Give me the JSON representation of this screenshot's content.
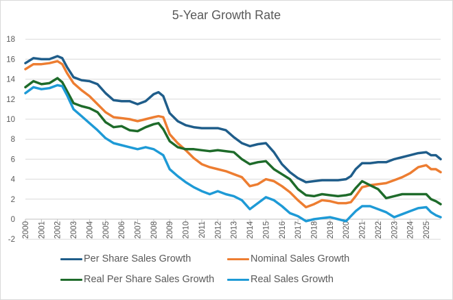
{
  "chart_data": {
    "type": "line",
    "title": "5-Year Growth Rate",
    "xlabel": "",
    "ylabel": "",
    "ylim": [
      -2,
      18
    ],
    "yticks": [
      "18",
      "16",
      "14",
      "12",
      "10",
      "8",
      "6",
      "4",
      "2",
      "0",
      "-2"
    ],
    "ytick_values": [
      18,
      16,
      14,
      12,
      10,
      8,
      6,
      4,
      2,
      0,
      -2
    ],
    "xlim": [
      2000,
      2025.9
    ],
    "xticks": [
      "2000",
      "2001",
      "2002",
      "2003",
      "2004",
      "2005",
      "2006",
      "2007",
      "2008",
      "2009",
      "2010",
      "2011",
      "2012",
      "2013",
      "2014",
      "2015",
      "2016",
      "2017",
      "2018",
      "2019",
      "2020",
      "2021",
      "2022",
      "2023",
      "2024",
      "2025"
    ],
    "grid": "horizontal",
    "legend_position": "bottom",
    "x": [
      2000.0,
      2000.5,
      2001.0,
      2001.5,
      2002.0,
      2002.3,
      2002.6,
      2003.0,
      2003.5,
      2004.0,
      2004.5,
      2005.0,
      2005.5,
      2006.0,
      2006.5,
      2007.0,
      2007.5,
      2008.0,
      2008.3,
      2008.6,
      2009.0,
      2009.5,
      2010.0,
      2010.5,
      2011.0,
      2011.5,
      2012.0,
      2012.5,
      2013.0,
      2013.5,
      2014.0,
      2014.5,
      2015.0,
      2015.5,
      2016.0,
      2016.5,
      2017.0,
      2017.5,
      2018.0,
      2018.5,
      2019.0,
      2019.5,
      2020.0,
      2020.3,
      2020.6,
      2021.0,
      2021.5,
      2022.0,
      2022.5,
      2023.0,
      2023.5,
      2024.0,
      2024.5,
      2025.0,
      2025.3,
      2025.6,
      2025.9
    ],
    "series": [
      {
        "name": "Per Share Sales Growth",
        "color": "#1f5d8a",
        "values": [
          15.6,
          16.1,
          16.0,
          16.0,
          16.3,
          16.1,
          15.2,
          14.2,
          13.9,
          13.8,
          13.5,
          12.6,
          11.9,
          11.8,
          11.8,
          11.5,
          11.8,
          12.5,
          12.7,
          12.3,
          10.6,
          9.8,
          9.4,
          9.2,
          9.1,
          9.1,
          9.1,
          8.9,
          8.2,
          7.6,
          7.3,
          7.5,
          7.6,
          6.7,
          5.5,
          4.7,
          4.1,
          3.7,
          3.8,
          3.9,
          3.9,
          3.9,
          4.0,
          4.3,
          5.0,
          5.6,
          5.6,
          5.7,
          5.7,
          6.0,
          6.2,
          6.4,
          6.6,
          6.7,
          6.4,
          6.4,
          6.0
        ]
      },
      {
        "name": "Nominal Sales Growth",
        "color": "#ed7d31",
        "values": [
          15.0,
          15.5,
          15.5,
          15.6,
          15.8,
          15.5,
          14.6,
          13.6,
          12.9,
          12.3,
          11.5,
          10.7,
          10.2,
          10.1,
          10.0,
          9.8,
          10.0,
          10.2,
          10.3,
          10.2,
          8.5,
          7.6,
          6.9,
          6.1,
          5.5,
          5.2,
          5.0,
          4.8,
          4.5,
          4.2,
          3.3,
          3.5,
          4.0,
          3.8,
          3.3,
          2.7,
          1.9,
          1.2,
          1.5,
          1.9,
          1.8,
          1.6,
          1.6,
          1.7,
          2.3,
          3.2,
          3.4,
          3.5,
          3.6,
          3.9,
          4.2,
          4.6,
          5.2,
          5.4,
          5.0,
          5.0,
          4.7
        ]
      },
      {
        "name": "Real Per Share Sales Growth",
        "color": "#1e6b2a",
        "values": [
          13.2,
          13.8,
          13.5,
          13.6,
          14.1,
          13.7,
          12.8,
          11.6,
          11.3,
          11.1,
          10.7,
          9.7,
          9.2,
          9.3,
          8.9,
          8.8,
          9.2,
          9.5,
          9.6,
          9.0,
          7.8,
          7.2,
          7.0,
          7.0,
          6.9,
          6.8,
          6.9,
          6.8,
          6.7,
          6.0,
          5.5,
          5.7,
          5.8,
          5.0,
          4.5,
          4.0,
          3.0,
          2.4,
          2.3,
          2.5,
          2.4,
          2.3,
          2.4,
          2.5,
          3.1,
          3.8,
          3.4,
          3.0,
          2.1,
          2.3,
          2.5,
          2.5,
          2.5,
          2.5,
          2.0,
          1.8,
          1.5
        ]
      },
      {
        "name": "Real Sales Growth",
        "color": "#1e9ad6",
        "values": [
          12.6,
          13.2,
          13.0,
          13.1,
          13.4,
          13.3,
          12.4,
          11.0,
          10.3,
          9.6,
          8.9,
          8.1,
          7.6,
          7.4,
          7.2,
          7.0,
          7.2,
          7.0,
          6.7,
          6.4,
          5.0,
          4.3,
          3.7,
          3.2,
          2.8,
          2.5,
          2.8,
          2.5,
          2.3,
          1.9,
          1.0,
          1.6,
          2.2,
          1.9,
          1.3,
          0.6,
          0.3,
          -0.2,
          0.0,
          0.1,
          0.2,
          0.0,
          -0.2,
          0.3,
          0.8,
          1.3,
          1.3,
          1.0,
          0.7,
          0.2,
          0.5,
          0.8,
          1.1,
          1.2,
          0.7,
          0.4,
          0.2
        ]
      }
    ]
  }
}
